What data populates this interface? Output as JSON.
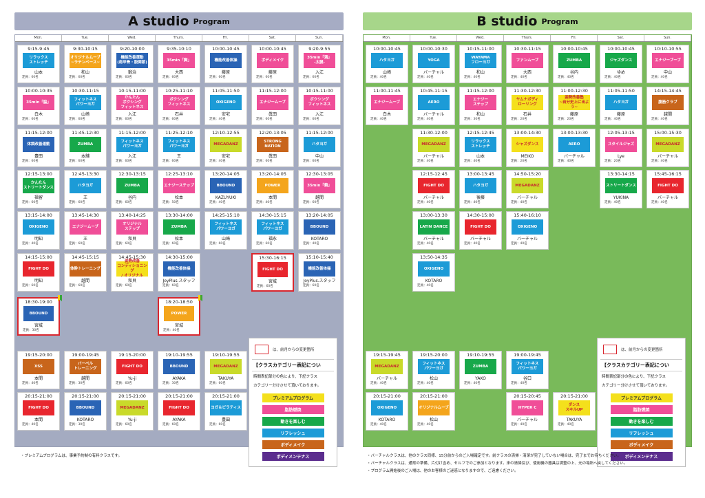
{
  "days": [
    "Mon.",
    "Tue.",
    "Wed.",
    "Thurs.",
    "Fri.",
    "Sat.",
    "Sun."
  ],
  "studio_a": {
    "title_big": "A studio",
    "title_small": "Program",
    "cells": [
      {
        "d": 0,
        "r": 0,
        "time": "9:15-9:45",
        "cls": "リラックス\nストレッチ",
        "color": "#1c9bd7",
        "inst": "山本",
        "cap": "定員：60名"
      },
      {
        "d": 1,
        "r": 0,
        "time": "9:30-10:15",
        "cls": "オリジナルムーブ\n~ラテンベース~",
        "color": "#f4a51c",
        "inst": "和山",
        "cap": "定員：60名"
      },
      {
        "d": 2,
        "r": 0,
        "time": "9:20-10:00",
        "cls": "機能改善運動\n(肩甲骨・股関節)",
        "color": "#2a64b5",
        "inst": "鍛治",
        "cap": "定員：60名"
      },
      {
        "d": 3,
        "r": 0,
        "time": "9:35-10:10",
        "cls": "35min「脚」",
        "color": "#f04e98",
        "inst": "大西",
        "cap": "定員：60名"
      },
      {
        "d": 4,
        "r": 0,
        "time": "10:00-10:45",
        "cls": "機能改善体操",
        "color": "#2a64b5",
        "inst": "藤原",
        "cap": "定員：60名"
      },
      {
        "d": 5,
        "r": 0,
        "time": "10:00-10:45",
        "cls": "ボディメイク",
        "color": "#f04e98",
        "inst": "藤原",
        "cap": "定員：60名"
      },
      {
        "d": 6,
        "r": 0,
        "time": "9:20-9:55",
        "cls": "35min「満」\n-太腿-",
        "color": "#f04e98",
        "inst": "入江",
        "cap": "定員：60名"
      },
      {
        "d": 0,
        "r": 1,
        "time": "10:00-10:35",
        "cls": "35min「脇」",
        "color": "#f04e98",
        "inst": "白木",
        "cap": "定員：60名"
      },
      {
        "d": 1,
        "r": 1,
        "time": "10:30-11:15",
        "cls": "フィットネス\nパワーヨガ",
        "color": "#1c9bd7",
        "inst": "山崎",
        "cap": "定員：60名"
      },
      {
        "d": 2,
        "r": 1,
        "time": "10:15-11:00",
        "cls": "かんたん\nボクシング\nフィットネス",
        "color": "#f04e98",
        "inst": "入江",
        "cap": "定員：60名"
      },
      {
        "d": 3,
        "r": 1,
        "time": "10:25-11:10",
        "cls": "ボクシング\nフィットネス",
        "color": "#f04e98",
        "inst": "石井",
        "cap": "定員：60名"
      },
      {
        "d": 4,
        "r": 1,
        "time": "11:05-11:50",
        "cls": "OXIGENO",
        "color": "#1c9bd7",
        "inst": "安宅",
        "cap": "定員：40名"
      },
      {
        "d": 5,
        "r": 1,
        "time": "11:15-12:00",
        "cls": "エナジームーブ",
        "color": "#f04e98",
        "inst": "眞田",
        "cap": "定員：60名"
      },
      {
        "d": 6,
        "r": 1,
        "time": "10:15-11:00",
        "cls": "ボクシング\nフィットネス",
        "color": "#f04e98",
        "inst": "入江",
        "cap": "定員：60名"
      },
      {
        "d": 0,
        "r": 2,
        "time": "11:15-12:00",
        "cls": "体調改善運動",
        "color": "#2a64b5",
        "inst": "豊田",
        "cap": "定員：60名"
      },
      {
        "d": 1,
        "r": 2,
        "time": "11:45-12:30",
        "cls": "ZUMBA",
        "color": "#17a84a",
        "inst": "本舗",
        "cap": "定員：60名"
      },
      {
        "d": 2,
        "r": 2,
        "time": "11:15-12:00",
        "cls": "フィットネス\nパワーヨガ",
        "color": "#1c9bd7",
        "inst": "入江",
        "cap": "定員：60名"
      },
      {
        "d": 3,
        "r": 2,
        "time": "11:25-12:10",
        "cls": "フィットネス\nパワーヨガ",
        "color": "#1c9bd7",
        "inst": "王",
        "cap": "定員：60名"
      },
      {
        "d": 4,
        "r": 2,
        "time": "12:10-12:55",
        "cls": "MEGADANZ",
        "color": "#c9da2a",
        "inst": "安宅",
        "cap": "定員：40名"
      },
      {
        "d": 5,
        "r": 2,
        "time": "12:20-13:05",
        "cls": "STRONG\nNATION",
        "color": "#c8651b",
        "inst": "眞田",
        "cap": "定員：60名"
      },
      {
        "d": 6,
        "r": 2,
        "time": "11:15-12:00",
        "cls": "ハタヨガ",
        "color": "#1c9bd7",
        "inst": "中山",
        "cap": "定員：60名"
      },
      {
        "d": 0,
        "r": 3,
        "time": "12:15-13:00",
        "cls": "かんたん\nストリートダンス",
        "color": "#17a84a",
        "inst": "福留",
        "cap": "定員：60名"
      },
      {
        "d": 1,
        "r": 3,
        "time": "12:45-13:30",
        "cls": "ハタヨガ",
        "color": "#1c9bd7",
        "inst": "王",
        "cap": "定員：60名"
      },
      {
        "d": 2,
        "r": 3,
        "time": "12:30-13:15",
        "cls": "ZUMBA",
        "color": "#17a84a",
        "inst": "谷内",
        "cap": "定員：60名"
      },
      {
        "d": 3,
        "r": 3,
        "time": "12:25-13:10",
        "cls": "エナジーステップ",
        "color": "#f04e98",
        "inst": "松本",
        "cap": "定員：50名"
      },
      {
        "d": 4,
        "r": 3,
        "time": "13:20-14:05",
        "cls": "BBOUND",
        "color": "#2a64b5",
        "inst": "KAZUYUKI",
        "cap": "定員：40名"
      },
      {
        "d": 5,
        "r": 3,
        "time": "13:20-14:05",
        "cls": "POWER",
        "color": "#f4a51c",
        "inst": "本間",
        "cap": "定員：40名"
      },
      {
        "d": 6,
        "r": 3,
        "time": "12:30-13:05",
        "cls": "35min「鎖」",
        "color": "#f04e98",
        "inst": "越間",
        "cap": "定員：60名"
      },
      {
        "d": 0,
        "r": 4,
        "time": "13:15-14:00",
        "cls": "OXIGENO",
        "color": "#1c9bd7",
        "inst": "明知",
        "cap": "定員：40名"
      },
      {
        "d": 1,
        "r": 4,
        "time": "13:45-14:30",
        "cls": "エナジームーブ",
        "color": "#f04e98",
        "inst": "王",
        "cap": "定員：60名"
      },
      {
        "d": 2,
        "r": 4,
        "time": "13:40-14:25",
        "cls": "オリジナル\nステップ",
        "color": "#f04e98",
        "inst": "和貝",
        "cap": "定員：60名"
      },
      {
        "d": 3,
        "r": 4,
        "time": "13:30-14:00",
        "cls": "ZUMBA",
        "color": "#17a84a",
        "inst": "松本",
        "cap": "定員：60名"
      },
      {
        "d": 4,
        "r": 4,
        "time": "14:25-15:10",
        "cls": "フィットネス\nパワーヨガ",
        "color": "#1c9bd7",
        "inst": "山崎",
        "cap": "定員：60名"
      },
      {
        "d": 5,
        "r": 4,
        "time": "14:30-15:15",
        "cls": "フィットネス\nパワーヨガ",
        "color": "#1c9bd7",
        "inst": "福永",
        "cap": "定員：60名"
      },
      {
        "d": 6,
        "r": 4,
        "time": "13:20-14:05",
        "cls": "BBOUND",
        "color": "#2a64b5",
        "inst": "KOTARO",
        "cap": "定員：40名"
      },
      {
        "d": 0,
        "r": 5,
        "time": "14:15-15:00",
        "cls": "FIGHT DO",
        "color": "#e8262e",
        "inst": "明知",
        "cap": "定員：60名"
      },
      {
        "d": 1,
        "r": 5,
        "time": "14:45-15:15",
        "cls": "体幹トレーニング",
        "color": "#c8651b",
        "inst": "越間",
        "cap": "定員：60名"
      },
      {
        "d": 2,
        "r": 5,
        "time": "14:45-15:30",
        "cls": "姿勢改善\nコンディショニング\n/ オリジナル",
        "color": "#f4e01c",
        "inst": "和貝",
        "cap": "定員：60名"
      },
      {
        "d": 3,
        "r": 5,
        "time": "14:30-15:00",
        "cls": "機能改善体操",
        "color": "#2a64b5",
        "inst": "JoyPlus.スタッフ",
        "cap": "定員：60名"
      },
      {
        "d": 5,
        "r": 5,
        "time": "15:30-16:15",
        "cls": "FIGHT DO",
        "color": "#e8262e",
        "inst": "宮城",
        "cap": "定員：60名",
        "hl": true
      },
      {
        "d": 6,
        "r": 5,
        "time": "15:10-15:40",
        "cls": "機能改善体操",
        "color": "#2a64b5",
        "inst": "JoyPlus.スタッフ",
        "cap": "定員：60名"
      },
      {
        "d": 0,
        "r": 6,
        "time": "18:30-19:00",
        "cls": "BBOUND",
        "color": "#2a64b5",
        "inst": "宮城",
        "cap": "定員：30名",
        "hl": true,
        "beg": true
      },
      {
        "d": 3,
        "r": 6,
        "time": "18:20-18:50",
        "cls": "POWER",
        "color": "#f4a51c",
        "inst": "宮城",
        "cap": "定員：40名",
        "hl": true,
        "beg": true
      },
      {
        "d": 0,
        "r": 7,
        "time": "19:15-20:00",
        "cls": "XSS",
        "color": "#c8651b",
        "inst": "本間",
        "cap": "定員：40名"
      },
      {
        "d": 1,
        "r": 7,
        "time": "19:00-19:45",
        "cls": "バーベル\nトレーニング",
        "color": "#c8651b",
        "inst": "越間",
        "cap": "定員：30名"
      },
      {
        "d": 2,
        "r": 7,
        "time": "19:15-20:00",
        "cls": "FIGHT DO",
        "color": "#e8262e",
        "inst": "Yu-ji",
        "cap": "定員：60名"
      },
      {
        "d": 3,
        "r": 7,
        "time": "19:10-19:55",
        "cls": "BBOUND",
        "color": "#2a64b5",
        "inst": "AYAKA",
        "cap": "定員：30名"
      },
      {
        "d": 4,
        "r": 7,
        "time": "19:10-19:55",
        "cls": "MEGADANZ",
        "color": "#c9da2a",
        "inst": "TAKUYA",
        "cap": "定員：60名"
      },
      {
        "d": 0,
        "r": 8,
        "time": "20:15-21:00",
        "cls": "FIGHT DO",
        "color": "#e8262e",
        "inst": "本間",
        "cap": "定員：40名"
      },
      {
        "d": 1,
        "r": 8,
        "time": "20:15-21:00",
        "cls": "BBOUND",
        "color": "#2a64b5",
        "inst": "KOTARO",
        "cap": "定員：30名"
      },
      {
        "d": 2,
        "r": 8,
        "time": "20:15-21:00",
        "cls": "MEGADANZ",
        "color": "#c9da2a",
        "inst": "Yu-ji",
        "cap": "定員：60名"
      },
      {
        "d": 3,
        "r": 8,
        "time": "20:15-21:00",
        "cls": "FIGHT DO",
        "color": "#e8262e",
        "inst": "AYAKA",
        "cap": "定員：60名"
      },
      {
        "d": 4,
        "r": 8,
        "time": "20:15-21:00",
        "cls": "ヨガ＆ピラティス",
        "color": "#1c9bd7",
        "inst": "豊田",
        "cap": "定員：60名"
      }
    ],
    "legend": {
      "key": "は、前月からの変更箇所",
      "head": "【クラスカテゴリー表記につい",
      "desc": "時間表記部分の色により、下記クラス\nカテゴリー分けさせて頂いております。"
    },
    "footnote": [
      {
        "t": "・プレミアムプログラムは、事業予約制の有料クラスです。",
        "red": false
      }
    ]
  },
  "studio_b": {
    "title_big": "B studio",
    "title_small": "Program",
    "cells": [
      {
        "d": 0,
        "r": 0,
        "time": "10:00-10:45",
        "cls": "ハタヨガ",
        "color": "#1c9bd7",
        "inst": "山崎",
        "cap": "定員：40名"
      },
      {
        "d": 1,
        "r": 0,
        "time": "10:00-10:30",
        "cls": "YOGA",
        "color": "#1c9bd7",
        "inst": "バーチャル",
        "cap": "定員：40名"
      },
      {
        "d": 2,
        "r": 0,
        "time": "10:15-11:00",
        "cls": "WAYAMA\nフローヨガ",
        "color": "#1c9bd7",
        "inst": "和山",
        "cap": "定員：40名"
      },
      {
        "d": 3,
        "r": 0,
        "time": "10:30-11:15",
        "cls": "ファンムーブ",
        "color": "#f04e98",
        "inst": "大西",
        "cap": "定員：40名"
      },
      {
        "d": 4,
        "r": 0,
        "time": "10:00-10:45",
        "cls": "ZUMBA",
        "color": "#17a84a",
        "inst": "谷内",
        "cap": "定員：40名"
      },
      {
        "d": 5,
        "r": 0,
        "time": "10:00-10:45",
        "cls": "ジャズダンス",
        "color": "#17a84a",
        "inst": "ゆめ",
        "cap": "定員：40名"
      },
      {
        "d": 6,
        "r": 0,
        "time": "10:10-10:55",
        "cls": "エナジーブーブ",
        "color": "#f04e98",
        "inst": "中山",
        "cap": "定員：40名"
      },
      {
        "d": 0,
        "r": 1,
        "time": "11:00-11:45",
        "cls": "エナジームーブ",
        "color": "#f04e98",
        "inst": "白木",
        "cap": "定員：40名"
      },
      {
        "d": 1,
        "r": 1,
        "time": "10:45-11:15",
        "cls": "AERO",
        "color": "#1c9bd7",
        "inst": "バーチャル",
        "cap": "定員：40名"
      },
      {
        "d": 2,
        "r": 1,
        "time": "11:15-12:00",
        "cls": "エナジー\nステップ",
        "color": "#f04e98",
        "inst": "和山",
        "cap": "定員：30名"
      },
      {
        "d": 3,
        "r": 1,
        "time": "11:30-12:30",
        "cls": "ヤムナボディ\nローリング",
        "color": "#f4e01c",
        "inst": "石井",
        "cap": "定員：20名"
      },
      {
        "d": 4,
        "r": 1,
        "time": "11:00-12:30",
        "cls": "姿勢改善塾\n~自分史上に出よう~",
        "color": "#f4e01c",
        "inst": "藤原",
        "cap": "定員：20名"
      },
      {
        "d": 5,
        "r": 1,
        "time": "11:05-11:50",
        "cls": "ハタヨガ",
        "color": "#1c9bd7",
        "inst": "藤原",
        "cap": "定員：40名"
      },
      {
        "d": 6,
        "r": 1,
        "time": "14:15-14:45",
        "cls": "腹筋クラブ",
        "color": "#c8651b",
        "inst": "越間",
        "cap": "定員：40名"
      },
      {
        "d": 1,
        "r": 2,
        "time": "11:30-12:00",
        "cls": "MEGADANZ",
        "color": "#c9da2a",
        "inst": "バーチャル",
        "cap": "定員：40名"
      },
      {
        "d": 2,
        "r": 2,
        "time": "12:15-12:45",
        "cls": "リラックス\nストレッチ",
        "color": "#1c9bd7",
        "inst": "山本",
        "cap": "定員：40名"
      },
      {
        "d": 3,
        "r": 2,
        "time": "13:00-14:30",
        "cls": "シャズダンス",
        "color": "#f4e01c",
        "inst": "MEIKO",
        "cap": "定員：20名"
      },
      {
        "d": 4,
        "r": 2,
        "time": "13:00-13:30",
        "cls": "AERO",
        "color": "#1c9bd7",
        "inst": "バーチャル",
        "cap": "定員：40名"
      },
      {
        "d": 5,
        "r": 2,
        "time": "12:05-13:15",
        "cls": "スタイルジャズ",
        "color": "#f04e98",
        "inst": "Lye",
        "cap": "定員：20名"
      },
      {
        "d": 6,
        "r": 2,
        "time": "15:00-15:30",
        "cls": "MEGADANZ",
        "color": "#c9da2a",
        "inst": "バーチャル",
        "cap": "定員：40名"
      },
      {
        "d": 1,
        "r": 3,
        "time": "12:15-12:45",
        "cls": "FIGHT DO",
        "color": "#e8262e",
        "inst": "バーチャル",
        "cap": "定員：40名"
      },
      {
        "d": 2,
        "r": 3,
        "time": "13:00-13:45",
        "cls": "ハタヨガ",
        "color": "#1c9bd7",
        "inst": "後藤",
        "cap": "定員：40名"
      },
      {
        "d": 3,
        "r": 3,
        "time": "14:50-15:20",
        "cls": "MEGADANZ",
        "color": "#c9da2a",
        "inst": "バーチャル",
        "cap": "定員：40名"
      },
      {
        "d": 5,
        "r": 3,
        "time": "13:30-14:15",
        "cls": "ストリートダンス",
        "color": "#17a84a",
        "inst": "YUKINA",
        "cap": "定員：40名"
      },
      {
        "d": 6,
        "r": 3,
        "time": "15:45-16:15",
        "cls": "FIGHT DO",
        "color": "#e8262e",
        "inst": "バーチャル",
        "cap": "定員：40名"
      },
      {
        "d": 1,
        "r": 4,
        "time": "13:00-13:30",
        "cls": "LATIN DANCE",
        "color": "#17a84a",
        "inst": "バーチャル",
        "cap": "定員：40名"
      },
      {
        "d": 2,
        "r": 4,
        "time": "14:30-15:00",
        "cls": "FIGHT DO",
        "color": "#e8262e",
        "inst": "バーチャル",
        "cap": "定員：40名"
      },
      {
        "d": 3,
        "r": 4,
        "time": "15:40-16:10",
        "cls": "OXIGENO",
        "color": "#1c9bd7",
        "inst": "バーチャル",
        "cap": "定員：40名"
      },
      {
        "d": 1,
        "r": 5,
        "time": "13:50-14:35",
        "cls": "OXIGENO",
        "color": "#1c9bd7",
        "inst": "KOTARO",
        "cap": "定員：40名"
      },
      {
        "d": 0,
        "r": 7,
        "time": "19:15-19:45",
        "cls": "MEGADANZ",
        "color": "#c9da2a",
        "inst": "バーチャル",
        "cap": "定員：40名"
      },
      {
        "d": 1,
        "r": 7,
        "time": "19:15-20:00",
        "cls": "フィットネス\nパワーヨガ",
        "color": "#1c9bd7",
        "inst": "松山",
        "cap": "定員：40名"
      },
      {
        "d": 2,
        "r": 7,
        "time": "19:10-19:55",
        "cls": "ZUMBA",
        "color": "#17a84a",
        "inst": "YAKO",
        "cap": "定員：40名"
      },
      {
        "d": 3,
        "r": 7,
        "time": "19:00-19:45",
        "cls": "フィットネス\nパワーヨガ",
        "color": "#1c9bd7",
        "inst": "谷口",
        "cap": "定員：40名"
      },
      {
        "d": 0,
        "r": 8,
        "time": "20:15-21:00",
        "cls": "OXIGENO",
        "color": "#1c9bd7",
        "inst": "KOTARO",
        "cap": "定員：40名"
      },
      {
        "d": 1,
        "r": 8,
        "time": "20:15-21:00",
        "cls": "オリジナルムーブ",
        "color": "#f4a51c",
        "inst": "松山",
        "cap": "定員：40名"
      },
      {
        "d": 3,
        "r": 8,
        "time": "20:15-20:45",
        "cls": "HYPER C",
        "color": "#f04e98",
        "inst": "バーチャル",
        "cap": "定員：40名"
      },
      {
        "d": 4,
        "r": 8,
        "time": "20:15-21:00",
        "cls": "ダンス\nスキルUP",
        "color": "#f4e01c",
        "inst": "TAKUYA",
        "cap": "定員：40名"
      }
    ],
    "legend": {
      "key": "は、前月からの変更箇所",
      "head": "【クラスカテゴリー表記につい",
      "desc": "時間表記部分の色により、下記クラス\nカテゴリー分けさせて頂いております。"
    },
    "footnote": [
      {
        "t": "・バーチャルクラスは、他のクラス同様、15分前からのご入場確定です。前クラスの清掃・清潔が完了していない場合は、完了までお待ちください。",
        "red": false
      },
      {
        "t": "・バーチャルクラスは、通常の準備、片付け含め、セルフでのご参加となります。床の清掃及び、使用機の器具は調整の上、元の場所へ戻してください。",
        "red": false
      },
      {
        "t": "・プログラム開始後のご入場は、他のお客様のご迷惑となりますので、ご遠慮ください。",
        "red": false
      }
    ]
  },
  "categories": [
    {
      "label": "プレミアムプログラム",
      "bg": "#f4e01c",
      "fg": "#333"
    },
    {
      "label": "脂肪燃焼",
      "bg": "#f04e98",
      "fg": "#fff"
    },
    {
      "label": "動きを楽しむ",
      "bg": "#17a84a",
      "fg": "#fff"
    },
    {
      "label": "リフレッシュ",
      "bg": "#1c9bd7",
      "fg": "#fff"
    },
    {
      "label": "ボディメイク",
      "bg": "#c8651b",
      "fg": "#fff"
    },
    {
      "label": "ボディメンテナス",
      "bg": "#5b2d8e",
      "fg": "#fff"
    }
  ]
}
